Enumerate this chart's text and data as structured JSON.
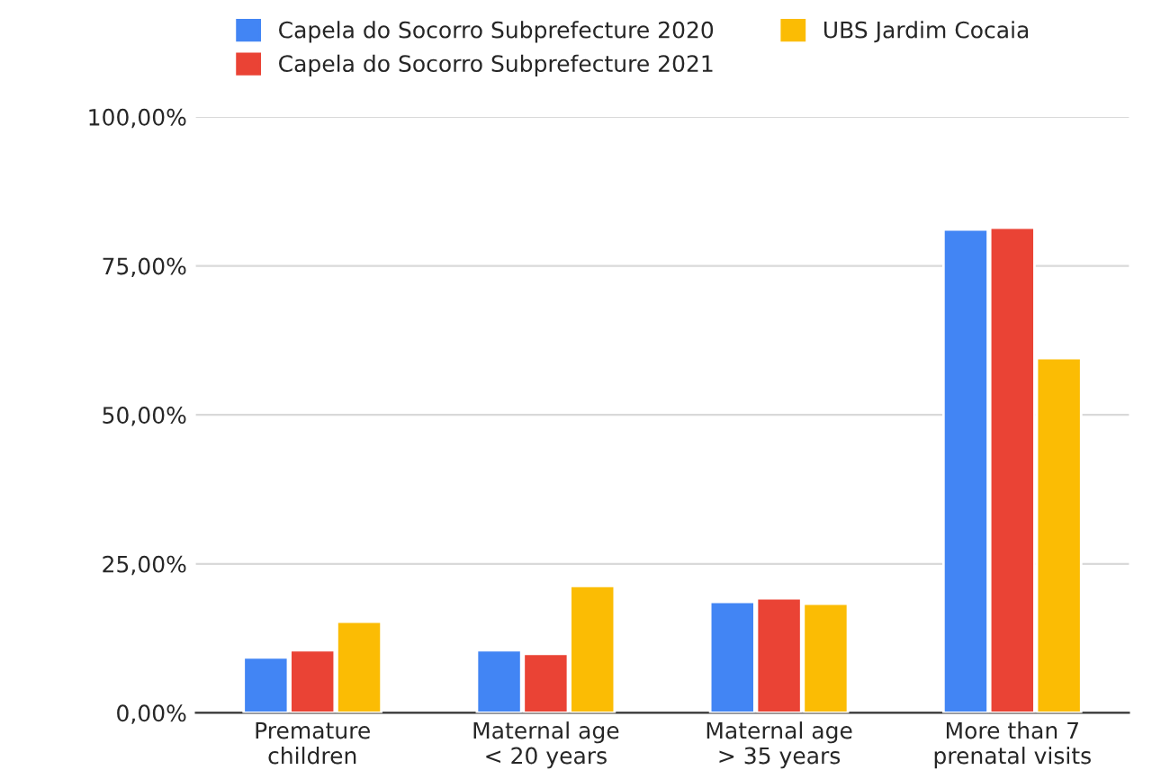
{
  "chart_data": {
    "type": "bar",
    "categories": [
      "Premature\nchildren",
      "Maternal age\n< 20 years",
      "Maternal age\n> 35 years",
      "More than 7\nprenatal visits"
    ],
    "series": [
      {
        "name": "Capela do Socorro Subprefecture 2020",
        "color": "#4285f4",
        "values": [
          9.3,
          10.5,
          18.6,
          81.1
        ]
      },
      {
        "name": "Capela do Socorro Subprefecture 2021",
        "color": "#ea4335",
        "values": [
          10.5,
          9.9,
          19.2,
          81.4
        ]
      },
      {
        "name": "UBS Jardim Cocaia",
        "color": "#fbbc04",
        "values": [
          15.3,
          21.3,
          18.3,
          59.5
        ]
      }
    ],
    "ylim": [
      0,
      100
    ],
    "yticks": [
      {
        "value": 0,
        "label": "0,00%"
      },
      {
        "value": 25,
        "label": "25,00%"
      },
      {
        "value": 50,
        "label": "50,00%"
      },
      {
        "value": 75,
        "label": "75,00%"
      },
      {
        "value": 100,
        "label": "100,00%"
      }
    ],
    "grid": "y",
    "legend": "top"
  }
}
